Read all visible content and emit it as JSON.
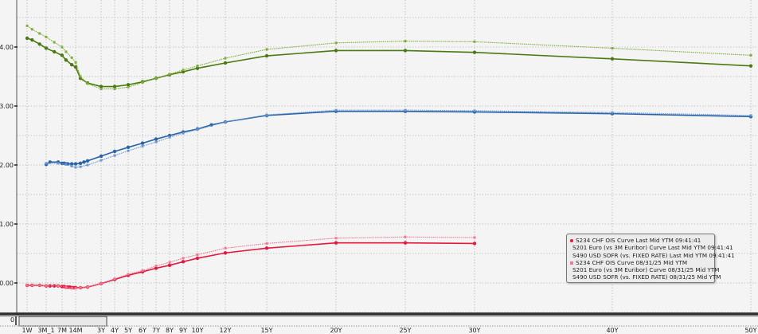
{
  "chart_data": {
    "type": "line",
    "x_tick_labels": [
      "1W",
      "3M_1",
      "7M",
      "14M",
      "3Y",
      "4Y",
      "5Y",
      "6Y",
      "7Y",
      "8Y",
      "9Y",
      "10Y",
      "12Y",
      "15Y",
      "20Y",
      "25Y",
      "30Y",
      "40Y",
      "50Y"
    ],
    "x_tick_tenors_years": [
      0.019,
      0.25,
      0.583,
      1.167,
      3,
      4,
      5,
      6,
      7,
      8,
      9,
      10,
      12,
      15,
      20,
      25,
      30,
      40,
      50
    ],
    "y_tick_labels": [
      "0.00",
      "1.00",
      "2.00",
      "3.00",
      "4.00"
    ],
    "ylim": [
      -0.5,
      4.8
    ],
    "grid": true,
    "legend_placement": "bottom-right",
    "navigator_label": "0",
    "series": [
      {
        "name": "S234 CHF OIS Curve Last Mid YTM 09:41:41",
        "color": "#e8173c",
        "style": "solid",
        "marker": "dot",
        "x": [
          0.02,
          0.08,
          0.17,
          0.25,
          0.33,
          0.42,
          0.5,
          0.58,
          0.67,
          0.75,
          0.83,
          0.92,
          1,
          1.08,
          1.17,
          1.5,
          2,
          3,
          4,
          5,
          6,
          7,
          8,
          9,
          10,
          12,
          15,
          20,
          25,
          30
        ],
        "y": [
          -0.04,
          -0.04,
          -0.04,
          -0.05,
          -0.05,
          -0.05,
          -0.05,
          -0.06,
          -0.06,
          -0.07,
          -0.07,
          -0.07,
          -0.08,
          -0.08,
          -0.08,
          -0.08,
          -0.07,
          -0.01,
          0.06,
          0.13,
          0.19,
          0.25,
          0.3,
          0.36,
          0.42,
          0.51,
          0.59,
          0.68,
          0.68,
          0.67
        ]
      },
      {
        "name": "S201 Euro (vs 3M Euribor) Curve Last Mid YTM 09:41:41",
        "color": "#2a64a8",
        "style": "solid",
        "marker": "dot",
        "x": [
          0.25,
          0.33,
          0.5,
          0.58,
          0.67,
          0.75,
          0.83,
          1,
          1.17,
          1.5,
          1.75,
          2,
          3,
          4,
          5,
          6,
          7,
          8,
          9,
          10,
          11,
          12,
          15,
          20,
          25,
          30,
          40,
          50
        ],
        "y": [
          2.01,
          2.05,
          2.05,
          2.03,
          2.03,
          2.02,
          2.02,
          2.02,
          2.02,
          2.03,
          2.05,
          2.07,
          2.15,
          2.23,
          2.3,
          2.37,
          2.44,
          2.5,
          2.56,
          2.61,
          2.68,
          2.73,
          2.84,
          2.91,
          2.91,
          2.9,
          2.87,
          2.82
        ]
      },
      {
        "name": "S490 USD SOFR (vs. FIXED RATE) Last Mid YTM 09:41:41",
        "color": "#4a7a10",
        "style": "solid",
        "marker": "dot",
        "x": [
          0.02,
          0.08,
          0.17,
          0.25,
          0.42,
          0.58,
          0.75,
          1,
          1.17,
          1.5,
          2,
          3,
          4,
          5,
          6,
          7,
          8,
          9,
          10,
          12,
          15,
          20,
          25,
          30,
          40,
          50
        ],
        "y": [
          4.15,
          4.12,
          4.05,
          3.98,
          3.92,
          3.86,
          3.78,
          3.7,
          3.66,
          3.47,
          3.39,
          3.33,
          3.33,
          3.36,
          3.41,
          3.47,
          3.53,
          3.58,
          3.64,
          3.73,
          3.85,
          3.94,
          3.94,
          3.91,
          3.8,
          3.68
        ]
      },
      {
        "name": "S234 CHF OIS Curve 08/31/25 Mid YTM",
        "color": "#f07a90",
        "style": "dotted",
        "marker": "square",
        "x": [
          0.02,
          0.08,
          0.17,
          0.25,
          0.5,
          0.75,
          1,
          1.17,
          1.5,
          2,
          3,
          4,
          5,
          6,
          7,
          8,
          9,
          10,
          12,
          15,
          20,
          25,
          30
        ],
        "y": [
          -0.04,
          -0.04,
          -0.04,
          -0.05,
          -0.05,
          -0.07,
          -0.09,
          -0.09,
          -0.08,
          -0.07,
          -0.01,
          0.07,
          0.15,
          0.21,
          0.29,
          0.35,
          0.42,
          0.48,
          0.59,
          0.67,
          0.76,
          0.78,
          0.77
        ]
      },
      {
        "name": "S201 Euro (vs 3M Euribor) Curve 08/31/25 Mid YTM",
        "color": "#6a98d0",
        "style": "dotted",
        "marker": "square",
        "x": [
          0.25,
          0.5,
          0.75,
          1,
          1.17,
          1.5,
          2,
          3,
          4,
          5,
          6,
          7,
          8,
          9,
          10,
          12,
          15,
          20,
          25,
          30,
          40,
          50
        ],
        "y": [
          2.03,
          2.03,
          2.01,
          1.98,
          1.96,
          1.97,
          2.0,
          2.08,
          2.16,
          2.24,
          2.32,
          2.39,
          2.47,
          2.54,
          2.6,
          2.73,
          2.85,
          2.93,
          2.93,
          2.92,
          2.89,
          2.84
        ]
      },
      {
        "name": "S490 USD SOFR (vs. FIXED RATE) 08/31/25 Mid YTM",
        "color": "#7fae3a",
        "style": "dotted",
        "marker": "square",
        "x": [
          0.02,
          0.08,
          0.17,
          0.25,
          0.42,
          0.58,
          0.75,
          1,
          1.17,
          1.5,
          2,
          3,
          4,
          5,
          6,
          7,
          8,
          9,
          10,
          12,
          15,
          20,
          25,
          30,
          40,
          50
        ],
        "y": [
          4.36,
          4.3,
          4.23,
          4.17,
          4.08,
          4.0,
          3.92,
          3.82,
          3.74,
          3.5,
          3.38,
          3.29,
          3.29,
          3.32,
          3.4,
          3.47,
          3.54,
          3.61,
          3.68,
          3.81,
          3.96,
          4.07,
          4.1,
          4.09,
          3.98,
          3.86
        ]
      }
    ]
  }
}
